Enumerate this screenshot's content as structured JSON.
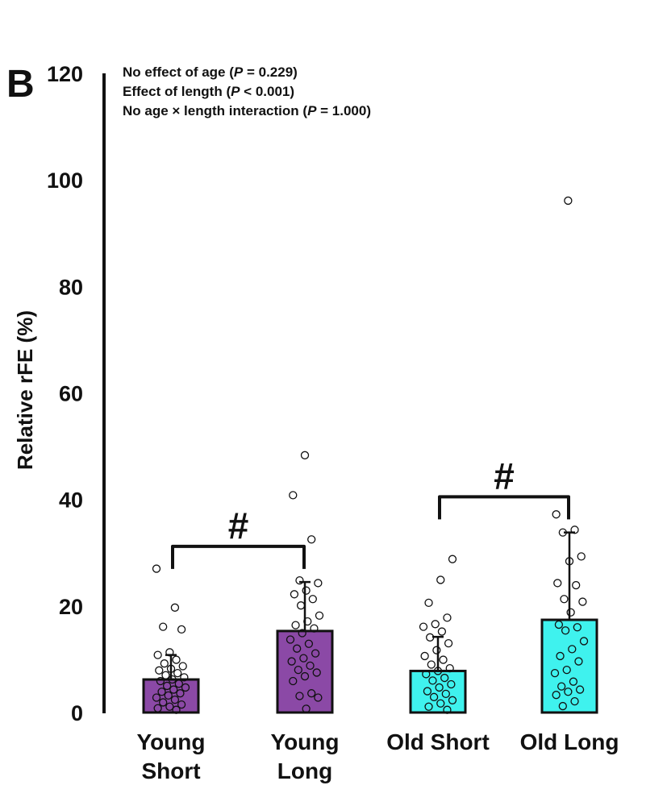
{
  "panel_label": "B",
  "chart_data": {
    "type": "bar",
    "ylabel": "Relative rFE (%)",
    "ylim": [
      0,
      120
    ],
    "yticks": [
      0,
      20,
      40,
      60,
      80,
      100,
      120
    ],
    "grid": false,
    "categories": [
      {
        "line1": "Young",
        "line2": "Short"
      },
      {
        "line1": "Young",
        "line2": "Long"
      },
      {
        "line1": "Old Short",
        "line2": ""
      },
      {
        "line1": "Old Long",
        "line2": ""
      }
    ],
    "values": [
      6.2,
      15.3,
      7.8,
      17.4
    ],
    "error_upper": [
      10.8,
      24.5,
      14.2,
      33.8
    ],
    "bar_colors": [
      "#8b49a6",
      "#8b49a6",
      "#3ff2ee",
      "#3ff2ee"
    ],
    "points": [
      [
        27.0,
        19.7,
        16.1,
        15.6,
        11.3,
        10.8,
        9.9,
        9.2,
        8.7,
        8.2,
        7.9,
        7.4,
        7.0,
        6.6,
        6.2,
        5.9,
        5.4,
        5.0,
        4.7,
        4.3,
        3.9,
        3.6,
        3.2,
        2.8,
        2.4,
        1.9,
        1.5,
        1.1,
        0.8,
        0.5
      ],
      [
        48.3,
        40.8,
        32.5,
        24.8,
        24.3,
        22.9,
        22.2,
        21.3,
        20.1,
        18.2,
        17.1,
        16.4,
        15.8,
        14.9,
        13.7,
        12.9,
        12.0,
        11.1,
        10.2,
        9.6,
        8.8,
        8.0,
        7.5,
        6.8,
        5.9,
        3.6,
        3.1,
        2.8,
        0.7
      ],
      [
        28.8,
        24.9,
        20.6,
        17.8,
        16.6,
        16.1,
        15.2,
        14.1,
        13.0,
        11.7,
        10.6,
        9.9,
        9.0,
        8.3,
        7.8,
        7.2,
        6.5,
        6.0,
        5.3,
        4.7,
        4.0,
        3.5,
        2.9,
        2.3,
        1.7,
        1.1,
        0.5
      ],
      [
        96.1,
        37.2,
        34.3,
        33.8,
        29.3,
        28.4,
        24.3,
        23.9,
        21.3,
        20.8,
        18.8,
        16.5,
        16.0,
        15.4,
        13.4,
        11.9,
        10.6,
        9.6,
        8.0,
        7.4,
        5.8,
        4.9,
        4.3,
        3.9,
        3.3,
        2.1,
        1.2
      ]
    ],
    "comparisons": [
      {
        "from": 0,
        "to": 1,
        "label": "#",
        "level": 31.2
      },
      {
        "from": 2,
        "to": 3,
        "label": "#",
        "level": 40.5
      }
    ],
    "annotations": [
      {
        "prefix": "No effect of age (",
        "italic": "P",
        "suffix": " = 0.229)"
      },
      {
        "prefix": "Effect of length (",
        "italic": "P",
        "suffix": " < 0.001)"
      },
      {
        "prefix": "No age × length interaction (",
        "italic": "P",
        "suffix": " = 1.000)"
      }
    ]
  }
}
